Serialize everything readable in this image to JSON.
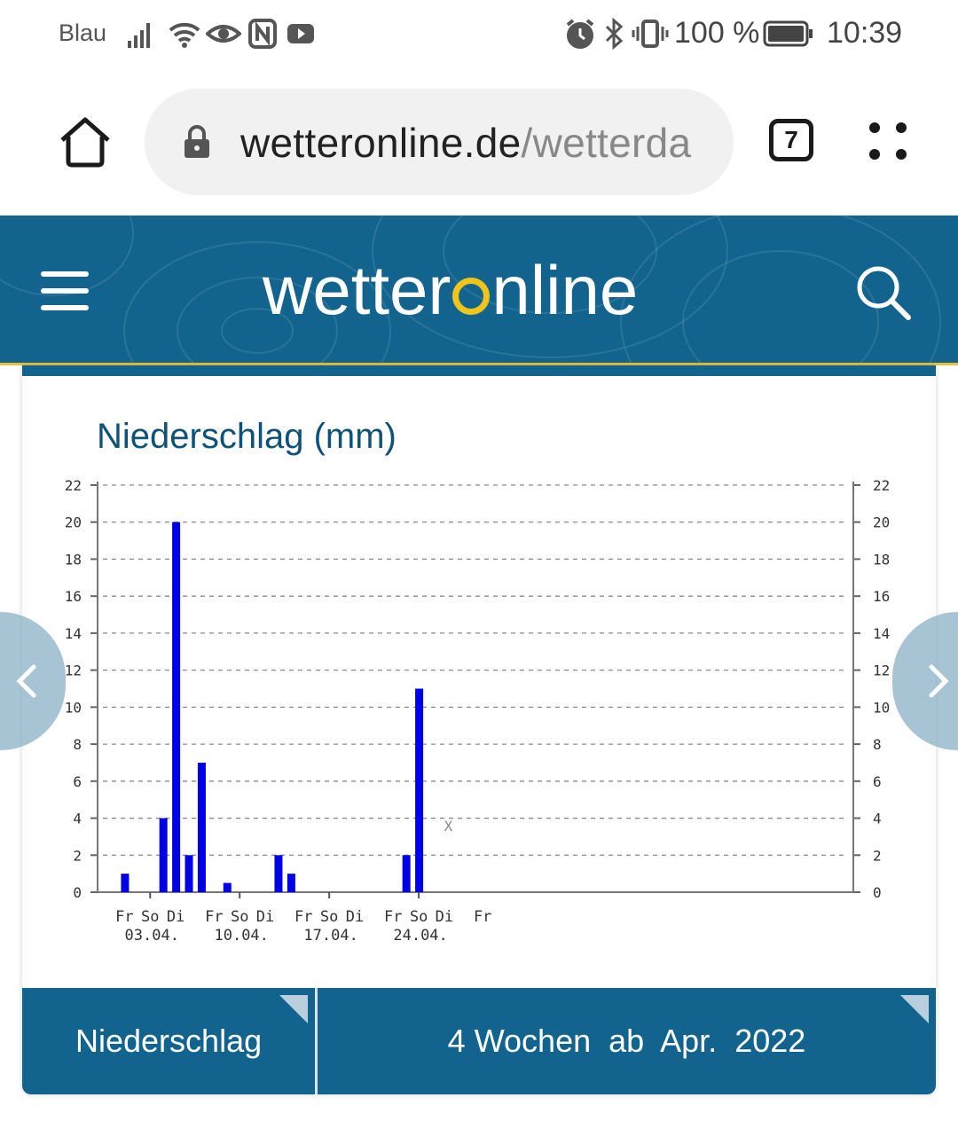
{
  "status_bar": {
    "carrier": "Blau",
    "battery": "100 %",
    "time": "10:39"
  },
  "browser": {
    "url_domain": "wetteronline.de",
    "url_path": "/wetterda",
    "tab_count": "7"
  },
  "site": {
    "logo_before": "wetter",
    "logo_after": "nline"
  },
  "chart_title": "Niederschlag (mm)",
  "chart_data": {
    "type": "bar",
    "title": "Niederschlag (mm)",
    "ylim": [
      0,
      22
    ],
    "yticks": [
      0,
      2,
      4,
      6,
      8,
      10,
      12,
      14,
      16,
      18,
      20,
      22
    ],
    "grid": true,
    "x_weekday_labels": [
      "Fr",
      "So",
      "Di",
      "Fr",
      "So",
      "Di",
      "Fr",
      "So",
      "Di",
      "Fr",
      "So",
      "Di",
      "Fr"
    ],
    "x_date_labels": [
      "03.04.",
      "10.04.",
      "17.04.",
      "24.04."
    ],
    "categories": [
      "01.04.",
      "04.04.",
      "05.04.",
      "06.04.",
      "07.04.",
      "09.04.",
      "13.04.",
      "14.04.",
      "23.04.",
      "24.04."
    ],
    "values": [
      1,
      4,
      20,
      2,
      7,
      0.5,
      2,
      1,
      2,
      11
    ],
    "marker": "X",
    "bar_color": "#0000e6"
  },
  "selectors": {
    "parameter": "Niederschlag",
    "range": "4 Wochen  ab  Apr.  2022"
  }
}
